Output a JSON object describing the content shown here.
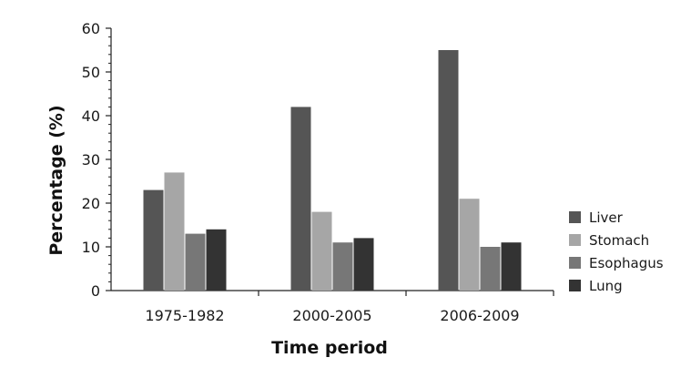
{
  "chart_data": {
    "type": "bar",
    "categories": [
      "1975-1982",
      "2000-2005",
      "2006-2009"
    ],
    "series": [
      {
        "name": "Liver",
        "values": [
          23,
          42,
          55
        ],
        "color": "#555555"
      },
      {
        "name": "Stomach",
        "values": [
          27,
          18,
          21
        ],
        "color": "#a6a6a6"
      },
      {
        "name": "Esophagus",
        "values": [
          13,
          11,
          10
        ],
        "color": "#777777"
      },
      {
        "name": "Lung",
        "values": [
          14,
          12,
          11
        ],
        "color": "#333333"
      }
    ],
    "title": "",
    "xlabel": "Time period",
    "ylabel": "Percentage (%)",
    "ylim": [
      0,
      60
    ],
    "yticks": [
      0,
      10,
      20,
      30,
      40,
      50,
      60
    ],
    "grid": false,
    "legend_position": "right"
  }
}
